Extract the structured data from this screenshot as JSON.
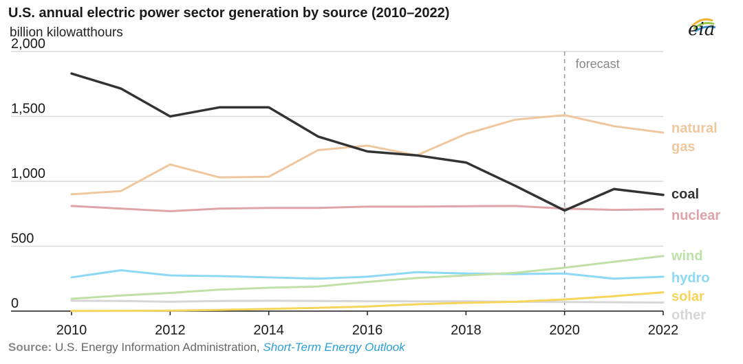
{
  "title": "U.S. annual electric power sector generation by source (2010–2022)",
  "subtitle": "billion kilowatthours",
  "logo_text": "eia",
  "source": {
    "label": "Source:",
    "text": " U.S. Energy Information Administration, ",
    "link": "Short-Term Energy Outlook"
  },
  "chart_data": {
    "type": "line",
    "title": "U.S. annual electric power sector generation by source (2010–2022)",
    "ylabel": "billion kilowatthours",
    "x": [
      2010,
      2011,
      2012,
      2013,
      2014,
      2015,
      2016,
      2017,
      2018,
      2019,
      2020,
      2021,
      2022
    ],
    "xticks": [
      "2010",
      "2012",
      "2014",
      "2016",
      "2018",
      "2020",
      "2022"
    ],
    "xlim": [
      2010,
      2022
    ],
    "ylim": [
      0,
      2000
    ],
    "yticks": [
      "0",
      "500",
      "1,000",
      "1,500",
      "2,000"
    ],
    "ytick_values": [
      0,
      500,
      1000,
      1500,
      2000
    ],
    "grid": "horizontal",
    "forecast_start": 2020,
    "forecast_label": "forecast",
    "series": [
      {
        "name": "natural gas",
        "label_lines": [
          "natural",
          "gas"
        ],
        "color": "#efc79f",
        "values": [
          900,
          925,
          1130,
          1030,
          1035,
          1240,
          1275,
          1200,
          1365,
          1475,
          1510,
          1425,
          1375
        ]
      },
      {
        "name": "coal",
        "label_lines": [
          "coal"
        ],
        "color": "#333333",
        "values": [
          1830,
          1715,
          1500,
          1570,
          1570,
          1345,
          1230,
          1200,
          1145,
          965,
          775,
          940,
          895
        ]
      },
      {
        "name": "nuclear",
        "label_lines": [
          "nuclear"
        ],
        "color": "#e0a3a9",
        "values": [
          810,
          790,
          770,
          790,
          795,
          795,
          805,
          805,
          808,
          810,
          790,
          780,
          785
        ]
      },
      {
        "name": "wind",
        "label_lines": [
          "wind"
        ],
        "color": "#bfe0a6",
        "values": [
          95,
          120,
          140,
          165,
          180,
          190,
          225,
          255,
          275,
          295,
          335,
          380,
          425
        ]
      },
      {
        "name": "hydro",
        "label_lines": [
          "hydro"
        ],
        "color": "#8dd8f4",
        "values": [
          260,
          315,
          275,
          270,
          260,
          250,
          265,
          300,
          290,
          285,
          290,
          250,
          265
        ]
      },
      {
        "name": "solar",
        "label_lines": [
          "solar"
        ],
        "color": "#f7d55a",
        "values": [
          1,
          2,
          4,
          9,
          17,
          25,
          36,
          53,
          64,
          72,
          90,
          115,
          145
        ]
      },
      {
        "name": "other",
        "label_lines": [
          "other"
        ],
        "color": "#d6d6d6",
        "values": [
          80,
          78,
          72,
          78,
          80,
          78,
          76,
          75,
          76,
          72,
          70,
          68,
          66
        ]
      }
    ]
  }
}
